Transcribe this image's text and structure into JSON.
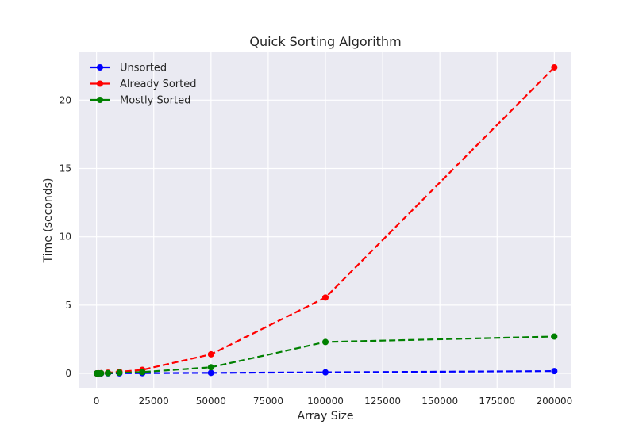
{
  "chart_data": {
    "type": "line",
    "title": "Quick Sorting Algorithm",
    "xlabel": "Array Size",
    "ylabel": "Time (seconds)",
    "xlim": [
      -7500,
      207500
    ],
    "ylim": [
      -1.1,
      23.5
    ],
    "xticks": [
      0,
      25000,
      50000,
      75000,
      100000,
      125000,
      150000,
      175000,
      200000
    ],
    "xtick_labels": [
      "0",
      "25000",
      "50000",
      "75000",
      "100000",
      "125000",
      "150000",
      "175000",
      "200000"
    ],
    "yticks": [
      0,
      5,
      10,
      15,
      20
    ],
    "ytick_labels": [
      "0",
      "5",
      "10",
      "15",
      "20"
    ],
    "grid": true,
    "legend_position": "top-left",
    "x": [
      100,
      500,
      1000,
      2000,
      5000,
      10000,
      20000,
      50000,
      100000,
      200000
    ],
    "series": [
      {
        "name": "Unsorted",
        "color": "#0000ff",
        "values": [
          0.0,
          0.0,
          0.0,
          0.0,
          0.01,
          0.01,
          0.02,
          0.04,
          0.08,
          0.17
        ]
      },
      {
        "name": "Already Sorted",
        "color": "#ff0000",
        "values": [
          0.0,
          0.0,
          0.01,
          0.02,
          0.05,
          0.12,
          0.26,
          1.4,
          5.55,
          22.4
        ]
      },
      {
        "name": "Mostly Sorted",
        "color": "#008000",
        "values": [
          0.0,
          0.0,
          0.0,
          0.01,
          0.02,
          0.05,
          0.1,
          0.45,
          2.3,
          2.7
        ]
      }
    ]
  }
}
